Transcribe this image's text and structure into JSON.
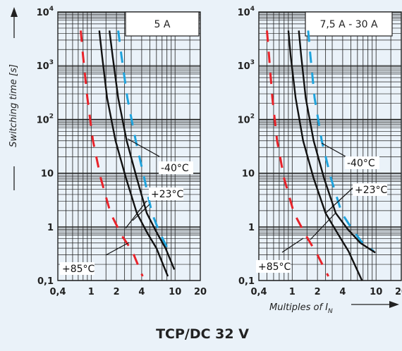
{
  "title": "TCP/DC 32 V",
  "ylabel": "Switching time [s]",
  "xlabel_text": "Multiples of I",
  "xlabel_sub": "N",
  "y_ticks": [
    {
      "base": "10",
      "exp": "4",
      "value": 10000
    },
    {
      "base": "10",
      "exp": "3",
      "value": 1000
    },
    {
      "base": "10",
      "exp": "2",
      "value": 100
    },
    {
      "base": "10",
      "exp": "",
      "value": 10
    },
    {
      "base": "1",
      "exp": "",
      "value": 1
    },
    {
      "base": "0,1",
      "exp": "",
      "value": 0.1
    }
  ],
  "x_ticks": [
    {
      "label": "0,4",
      "value": 0.4
    },
    {
      "label": "1",
      "value": 1
    },
    {
      "label": "2",
      "value": 2
    },
    {
      "label": "4",
      "value": 4
    },
    {
      "label": "10",
      "value": 10
    },
    {
      "label": "20",
      "value": 20
    }
  ],
  "colors": {
    "hot": "#e8232a",
    "cold": "#1fa3dc",
    "nominal": "#111111",
    "grid": "#222222"
  },
  "chart_data": [
    {
      "type": "line",
      "title": "5 A",
      "xlabel": "Multiples of IN",
      "ylabel": "Switching time [s]",
      "x_scale": "log",
      "y_scale": "log",
      "xlim": [
        0.4,
        20
      ],
      "ylim": [
        0.1,
        10000
      ],
      "grid": true,
      "annotations": [
        "-40°C",
        "+23°C",
        "+85°C"
      ],
      "series": [
        {
          "role": "hot-low",
          "style": "dashed",
          "color": "#e8232a",
          "x": [
            0.75,
            0.8,
            0.9,
            1.05,
            1.3,
            1.7,
            2.3,
            3.1,
            4.1
          ],
          "y": [
            4500,
            1500,
            250,
            40,
            8,
            1.8,
            0.7,
            0.35,
            0.12
          ]
        },
        {
          "role": "cold-high",
          "style": "dashed",
          "color": "#1fa3dc",
          "x": [
            2.1,
            2.3,
            2.7,
            3.4,
            4.3,
            5.3,
            6.5,
            7.8,
            9.0
          ],
          "y": [
            4500,
            1500,
            250,
            40,
            8,
            1.8,
            0.8,
            0.45,
            0.3
          ]
        },
        {
          "role": "nominal-1",
          "style": "solid",
          "color": "#111111",
          "x": [
            1.25,
            1.35,
            1.55,
            1.95,
            2.6,
            3.5,
            4.6,
            6.0,
            8.2
          ],
          "y": [
            4500,
            1500,
            250,
            40,
            8,
            1.8,
            0.8,
            0.4,
            0.12
          ]
        },
        {
          "role": "nominal-2",
          "style": "solid",
          "color": "#111111",
          "x": [
            1.65,
            1.8,
            2.1,
            2.65,
            3.5,
            4.6,
            6.0,
            7.7,
            9.8
          ],
          "y": [
            4500,
            1500,
            250,
            40,
            8,
            1.8,
            0.8,
            0.4,
            0.16
          ]
        }
      ]
    },
    {
      "type": "line",
      "title": "7,5 A - 30 A",
      "xlabel": "Multiples of IN",
      "ylabel": "",
      "x_scale": "log",
      "y_scale": "log",
      "xlim": [
        0.4,
        20
      ],
      "ylim": [
        0.1,
        10000
      ],
      "grid": true,
      "annotations": [
        "-40°C",
        "+23°C",
        "+85°C"
      ],
      "series": [
        {
          "role": "hot-low",
          "style": "dashed",
          "color": "#e8232a",
          "x": [
            0.5,
            0.53,
            0.58,
            0.66,
            0.8,
            1.05,
            1.45,
            2.0,
            2.7
          ],
          "y": [
            4500,
            1500,
            250,
            40,
            8,
            1.8,
            0.7,
            0.3,
            0.12
          ]
        },
        {
          "role": "cold-high",
          "style": "dashed",
          "color": "#1fa3dc",
          "x": [
            1.55,
            1.65,
            1.85,
            2.25,
            2.9,
            3.9,
            5.2,
            6.9,
            9.4
          ],
          "y": [
            4500,
            1500,
            250,
            40,
            8,
            1.8,
            0.9,
            0.5,
            0.35
          ]
        },
        {
          "role": "nominal-1",
          "style": "solid",
          "color": "#111111",
          "x": [
            0.9,
            0.96,
            1.1,
            1.35,
            1.8,
            2.5,
            3.4,
            4.7,
            6.8
          ],
          "y": [
            4500,
            1500,
            250,
            40,
            8,
            1.8,
            0.8,
            0.35,
            0.1
          ]
        },
        {
          "role": "nominal-2",
          "style": "solid",
          "color": "#111111",
          "x": [
            1.2,
            1.28,
            1.45,
            1.8,
            2.4,
            3.3,
            4.6,
            6.5,
            9.8
          ],
          "y": [
            4500,
            1500,
            250,
            40,
            8,
            1.8,
            0.9,
            0.5,
            0.33
          ]
        }
      ]
    }
  ]
}
